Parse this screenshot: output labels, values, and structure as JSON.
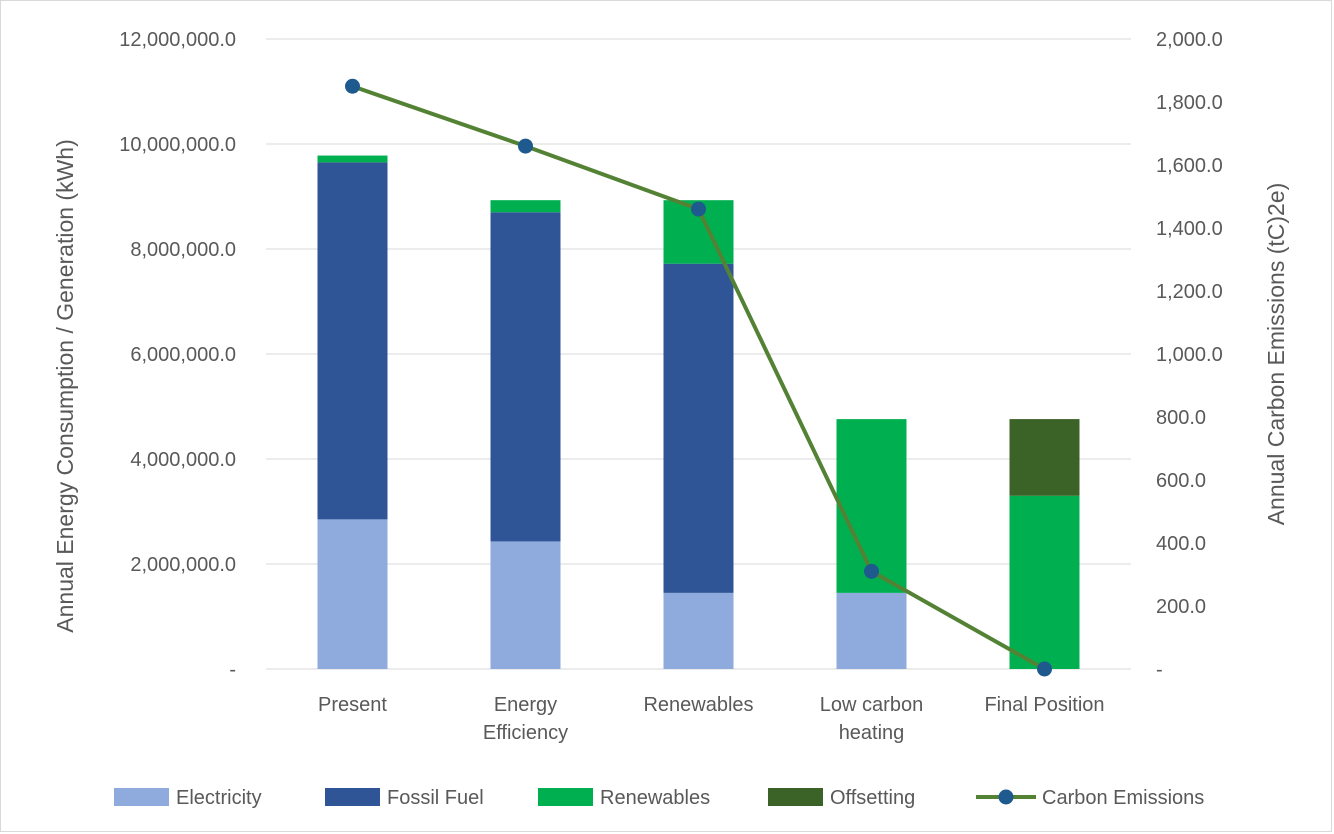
{
  "chart_data": {
    "type": "bar",
    "stacked": true,
    "categories": [
      [
        "Present"
      ],
      [
        "Energy",
        "Efficiency"
      ],
      [
        "Renewables"
      ],
      [
        "Low carbon",
        "heating"
      ],
      [
        "Final Position"
      ]
    ],
    "series": [
      {
        "name": "Electricity",
        "color": "#8faadc",
        "values": [
          2850000,
          2430000,
          1450000,
          1450000,
          0
        ]
      },
      {
        "name": "Fossil Fuel",
        "color": "#2f5597",
        "values": [
          6800000,
          6270000,
          6270000,
          0,
          0
        ]
      },
      {
        "name": "Renewables",
        "color": "#00b050",
        "values": [
          130000,
          230000,
          1210000,
          3310000,
          3300000
        ]
      },
      {
        "name": "Offsetting",
        "color": "#3b6227",
        "values": [
          0,
          0,
          0,
          0,
          1460000
        ]
      }
    ],
    "line_series": {
      "name": "Carbon Emissions",
      "color": "#548235",
      "marker_color": "#1f5a8f",
      "axis": "right",
      "values": [
        1850,
        1660,
        1460,
        310,
        0
      ]
    },
    "ylabel": "Annual Energy Consumption / Generation (kWh)",
    "ylabel_right": "Annual Carbon Emissions (tC)2e)",
    "ylim": [
      0,
      12000000
    ],
    "ylim_right": [
      0,
      2000
    ],
    "yticks": [
      "-",
      "2,000,000.0",
      "4,000,000.0",
      "6,000,000.0",
      "8,000,000.0",
      "10,000,000.0",
      "12,000,000.0"
    ],
    "yticks_right": [
      "-",
      "200.0",
      "400.0",
      "600.0",
      "800.0",
      "1,000.0",
      "1,200.0",
      "1,400.0",
      "1,600.0",
      "1,800.0",
      "2,000.0"
    ],
    "grid": true,
    "legend_position": "bottom",
    "legend": [
      "Electricity",
      "Fossil Fuel",
      "Renewables",
      "Offsetting",
      "Carbon Emissions"
    ]
  }
}
